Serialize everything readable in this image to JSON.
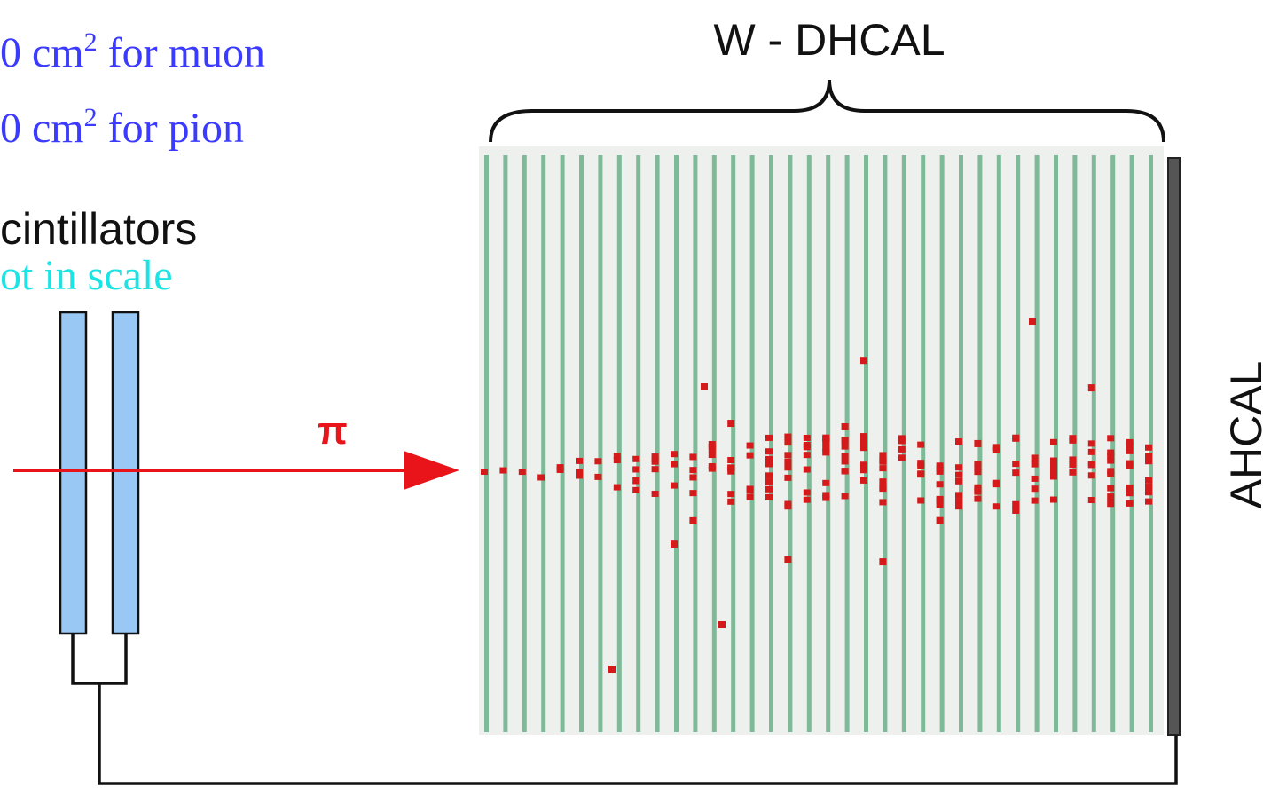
{
  "labels": {
    "muon": {
      "text": "0 cm",
      "sup": "2",
      "rest": " for muon"
    },
    "pion": {
      "text": "0 cm",
      "sup": "2",
      "rest": " for pion"
    },
    "scintillators": "cintillators",
    "scale_note": "ot in scale",
    "beam": "π",
    "dhcal": "W - DHCAL",
    "ahcal": "AHCAL"
  }
}
